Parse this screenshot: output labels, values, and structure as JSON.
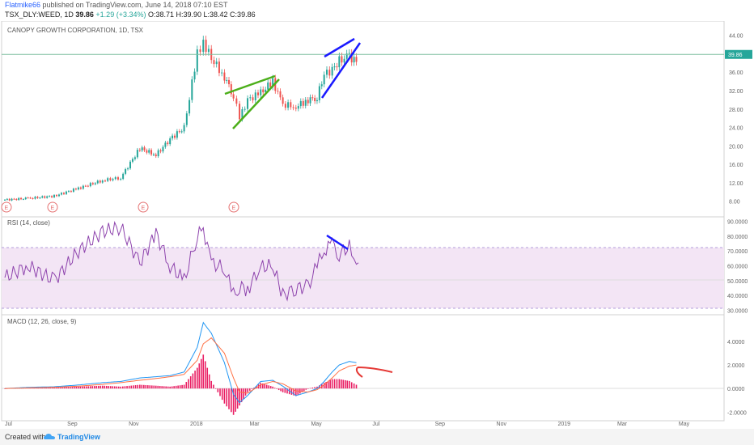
{
  "header": {
    "publisher": "Flatmike66",
    "published_text": "published on TradingView.com, June 14, 2018 07:10 EST",
    "symbol_line": "TSX_DLY:WEED, 1D",
    "last": "39.86",
    "change": "+1.29 (+3.34%)",
    "ohlc": "O:38.71 H:39.90 L:38.42 C:39.86"
  },
  "panes": {
    "price_title": "CANOPY GROWTH CORPORATION, 1D, TSX",
    "rsi_title": "RSI (14, close)",
    "macd_title": "MACD (12, 26, close, 9)"
  },
  "price_axis": [
    "44.00",
    "40.00",
    "36.00",
    "32.00",
    "28.00",
    "24.00",
    "20.00",
    "16.00",
    "12.00",
    "8.00"
  ],
  "current_price_label": "39.86",
  "rsi_axis": [
    "90.0000",
    "80.0000",
    "70.0000",
    "60.0000",
    "50.0000",
    "40.0000",
    "30.0000"
  ],
  "macd_axis": [
    "4.0000",
    "2.0000",
    "0.0000",
    "-2.0000"
  ],
  "time_axis": [
    "Jul",
    "Sep",
    "Nov",
    "2018",
    "Mar",
    "May",
    "Jul",
    "Sep",
    "Nov",
    "2019",
    "Mar",
    "May"
  ],
  "earnings_marker": "E",
  "footer": {
    "created_with": "Created with",
    "brand": "TradingView"
  },
  "colors": {
    "up": "#26a69a",
    "down": "#ef5350",
    "rsi": "#8e44ad",
    "rsi_band": "#f3e5f5",
    "macd": "#2196f3",
    "signal": "#ff7043",
    "hist": "#e91e63",
    "wedge_green": "#4caf1a",
    "wedge_blue": "#1a1aff",
    "arrow": "#e53935",
    "price_line": "#7fbf9f"
  },
  "chart_data": [
    {
      "type": "candlestick",
      "title": "CANOPY GROWTH CORPORATION, 1D, TSX",
      "x": [
        "2017-06-27",
        "2017-07-20",
        "2017-08-15",
        "2017-09-08",
        "2017-10-02",
        "2017-10-20",
        "2017-11-08",
        "2017-11-24",
        "2017-12-08",
        "2017-12-22",
        "2018-01-04",
        "2018-01-10",
        "2018-01-18",
        "2018-01-31",
        "2018-02-09",
        "2018-02-15",
        "2018-02-23",
        "2018-03-08",
        "2018-03-20",
        "2018-03-30",
        "2018-04-12",
        "2018-04-24",
        "2018-05-03",
        "2018-05-10",
        "2018-05-18",
        "2018-05-25",
        "2018-06-04",
        "2018-06-11",
        "2018-06-13"
      ],
      "close": [
        8.3,
        8.6,
        9.1,
        10.8,
        12.5,
        13.1,
        19.5,
        18.0,
        21.5,
        24.0,
        40.0,
        42.6,
        39.0,
        35.0,
        31.0,
        26.0,
        30.0,
        31.5,
        34.0,
        29.0,
        28.5,
        30.0,
        30.5,
        35.5,
        36.5,
        38.5,
        39.5,
        38.3,
        39.86
      ],
      "ylim": [
        6,
        45
      ],
      "current_price": 39.86
    },
    {
      "type": "line",
      "title": "RSI (14, close)",
      "x": [
        "2017-06-27",
        "2017-07-20",
        "2017-08-15",
        "2017-09-08",
        "2017-10-02",
        "2017-10-20",
        "2017-11-08",
        "2017-11-24",
        "2017-12-08",
        "2017-12-22",
        "2018-01-04",
        "2018-01-10",
        "2018-01-18",
        "2018-01-31",
        "2018-02-09",
        "2018-02-15",
        "2018-02-23",
        "2018-03-08",
        "2018-03-20",
        "2018-03-30",
        "2018-04-12",
        "2018-04-24",
        "2018-05-03",
        "2018-05-10",
        "2018-05-18",
        "2018-05-25",
        "2018-06-04",
        "2018-06-11",
        "2018-06-13"
      ],
      "values": [
        52,
        60,
        50,
        70,
        83,
        86,
        62,
        82,
        60,
        50,
        80,
        85,
        62,
        58,
        40,
        46,
        44,
        59,
        60,
        40,
        45,
        46,
        60,
        70,
        75,
        68,
        73,
        64,
        62
      ],
      "ylim": [
        28,
        92
      ],
      "bands": [
        70,
        30
      ]
    },
    {
      "type": "line",
      "title": "MACD (12, 26, close, 9)",
      "x": [
        "2017-06-27",
        "2017-07-20",
        "2017-08-15",
        "2017-09-08",
        "2017-10-02",
        "2017-10-20",
        "2017-11-08",
        "2017-11-24",
        "2017-12-08",
        "2017-12-22",
        "2018-01-04",
        "2018-01-10",
        "2018-01-18",
        "2018-01-31",
        "2018-02-09",
        "2018-02-15",
        "2018-02-23",
        "2018-03-08",
        "2018-03-20",
        "2018-03-30",
        "2018-04-12",
        "2018-04-24",
        "2018-05-03",
        "2018-05-10",
        "2018-05-18",
        "2018-05-25",
        "2018-06-04",
        "2018-06-11",
        "2018-06-13"
      ],
      "series": [
        {
          "values": [
            0.0,
            0.1,
            0.15,
            0.3,
            0.5,
            0.6,
            0.9,
            1.0,
            1.1,
            1.4,
            3.5,
            5.6,
            4.7,
            2.2,
            -0.5,
            -1.2,
            -0.6,
            0.6,
            0.7,
            0.2,
            -0.6,
            -0.3,
            0.0,
            0.6,
            1.4,
            2.0,
            2.3,
            2.2,
            2.1
          ]
        },
        {
          "values": [
            0.0,
            0.05,
            0.1,
            0.2,
            0.35,
            0.5,
            0.7,
            0.85,
            1.0,
            1.2,
            2.4,
            3.8,
            4.3,
            3.0,
            0.9,
            -0.3,
            -0.4,
            0.3,
            0.6,
            0.4,
            -0.2,
            -0.3,
            -0.1,
            0.3,
            0.9,
            1.5,
            1.9,
            2.0,
            2.0
          ]
        }
      ],
      "ylim": [
        -2.6,
        6.2
      ]
    }
  ]
}
